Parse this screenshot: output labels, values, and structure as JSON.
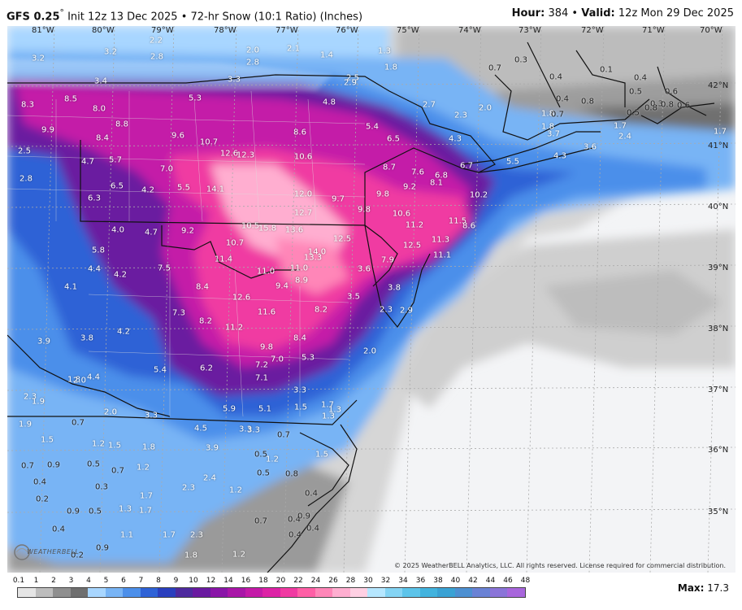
{
  "header": {
    "model": "GFS 0.25",
    "degree": "°",
    "init": "Init 12z 13 Dec 2025",
    "separator": "•",
    "product": "72-hr Snow (10:1 Ratio) (Inches)",
    "hour_label": "Hour:",
    "hour_value": "384",
    "valid_label": "Valid:",
    "valid_value": "12z Mon 29 Dec 2025"
  },
  "longitudes": [
    "81°W",
    "80°W",
    "79°W",
    "78°W",
    "77°W",
    "76°W",
    "75°W",
    "74°W",
    "73°W",
    "72°W",
    "71°W",
    "70°W"
  ],
  "latitudes": [
    "42°N",
    "41°N",
    "40°N",
    "39°N",
    "38°N",
    "37°N",
    "36°N",
    "35°N"
  ],
  "snow_values": [
    "2.2",
    "3.2",
    "3.2",
    "2.8",
    "3.4",
    "2.0",
    "2.8",
    "3.3",
    "2.1",
    "1.4",
    "1.3",
    "1.8",
    "2.5",
    "2.9",
    "0.3",
    "0.7",
    "8.3",
    "8.5",
    "8.0",
    "5.3",
    "4.8",
    "2.7",
    "2.0",
    "2.3",
    "0.4",
    "0.4",
    "0.1",
    "0.5",
    "0.6",
    "0.4",
    "0.3",
    "9.9",
    "8.8",
    "8.4",
    "9.6",
    "8.6",
    "5.4",
    "1.8",
    "0.7",
    "0.8",
    "0.5",
    "0.8",
    "0.6",
    "0.8",
    "2.5",
    "4.7",
    "5.7",
    "10.7",
    "12.6",
    "12.3",
    "10.6",
    "6.5",
    "4.3",
    "3.7",
    "1.8",
    "1.7",
    "2.4",
    "1.7",
    "2.8",
    "6.5",
    "7.0",
    "8.7",
    "7.6",
    "6.8",
    "6.7",
    "5.5",
    "4.3",
    "3.6",
    "6.3",
    "4.2",
    "5.5",
    "14.1",
    "12.0",
    "9.7",
    "9.8",
    "9.2",
    "8.1",
    "10.2",
    "4.0",
    "4.7",
    "9.2",
    "10.5",
    "15.8",
    "13.6",
    "12.7",
    "9.8",
    "10.6",
    "11.2",
    "11.5",
    "8.6",
    "5.8",
    "10.7",
    "14.0",
    "12.5",
    "11.3",
    "11.1",
    "13.3",
    "12.5",
    "4.4",
    "4.2",
    "7.5",
    "11.4",
    "11.0",
    "11.0",
    "8.9",
    "7.9",
    "3.6",
    "4.1",
    "8.4",
    "9.4",
    "3.8",
    "12.6",
    "11.6",
    "8.2",
    "3.5",
    "7.3",
    "8.2",
    "4.2",
    "11.2",
    "2.3",
    "2.9",
    "3.9",
    "3.8",
    "9.8",
    "8.4",
    "7.0",
    "5.3",
    "2.0",
    "4.4",
    "5.4",
    "6.2",
    "7.2",
    "7.1",
    "3.3",
    "1.8",
    "2.0",
    "2.3",
    "5.9",
    "5.1",
    "3.3",
    "1.7",
    "1.3",
    "1.5",
    "1.3",
    "1.9",
    "1.9",
    "0.7",
    "1.5",
    "1.2",
    "1.5",
    "1.8",
    "2.0",
    "3.3",
    "4.5",
    "3.3",
    "0.7",
    "1.5",
    "3.9",
    "1.2",
    "0.5",
    "0.7",
    "0.9",
    "0.5",
    "0.7",
    "1.2",
    "0.4",
    "0.5",
    "0.8",
    "0.4",
    "0.3",
    "1.7",
    "2.3",
    "2.4",
    "1.2",
    "0.2",
    "0.9",
    "0.5",
    "1.3",
    "1.7",
    "0.7",
    "0.4",
    "0.4",
    "0.4",
    "1.1",
    "1.7",
    "2.3",
    "0.2",
    "0.9",
    "1.8",
    "1.2",
    "0.4",
    "0.9"
  ],
  "legend": {
    "ticks": [
      "0.1",
      "1",
      "2",
      "3",
      "4",
      "5",
      "6",
      "7",
      "8",
      "9",
      "10",
      "12",
      "14",
      "16",
      "18",
      "20",
      "22",
      "24",
      "26",
      "28",
      "30",
      "32",
      "34",
      "36",
      "38",
      "40",
      "42",
      "44",
      "46",
      "48"
    ],
    "colors": [
      "#e5e5e5",
      "#bdbdbd",
      "#8f8f8f",
      "#6f6f6f",
      "#a8d6ff",
      "#78b4f5",
      "#4c8fea",
      "#2e62d6",
      "#2a3fbe",
      "#4e2a9e",
      "#6a1aa0",
      "#8a15a8",
      "#a916a8",
      "#c41aa8",
      "#dd22a6",
      "#f03aa2",
      "#ff5fa6",
      "#ff86b8",
      "#ffaed0",
      "#ffd0e3",
      "#b6e7ff",
      "#84d4f4",
      "#5cc4ea",
      "#42b3de",
      "#3aa2d4",
      "#4d90d2",
      "#6a82d5",
      "#8a74d8",
      "#a866dc"
    ]
  },
  "max": {
    "label": "Max:",
    "value": "17.3"
  },
  "copyright": "© 2025 WeatherBELL Analytics, LLC. All rights reserved. License required for commercial distribution.",
  "logo": "WEATHERBELL"
}
